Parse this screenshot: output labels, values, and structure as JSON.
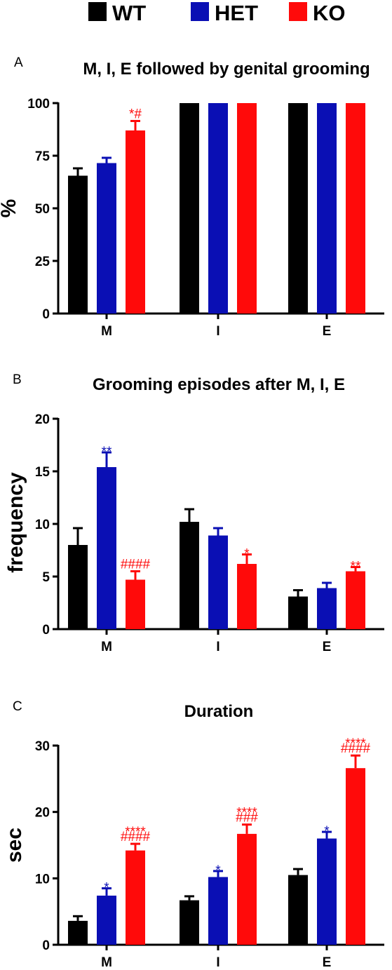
{
  "legend": [
    {
      "label": "WT",
      "color": "#000000"
    },
    {
      "label": "HET",
      "color": "#0a0fb4"
    },
    {
      "label": "KO",
      "color": "#ff0a0a"
    }
  ],
  "colors": {
    "WT": "#000000",
    "HET": "#0a0fb4",
    "KO": "#ff0a0a"
  },
  "chart_data": [
    {
      "panel": "A",
      "type": "bar",
      "title": "M, I, E followed by genital grooming",
      "ylabel": "%",
      "xlabel": "",
      "categories": [
        "M",
        "I",
        "E"
      ],
      "ylim": [
        0,
        100
      ],
      "yticks": [
        "0",
        "25",
        "50",
        "75",
        "100"
      ],
      "series": [
        {
          "name": "WT",
          "values": [
            65.5,
            100,
            100
          ],
          "errors": [
            3.5,
            0,
            0
          ],
          "annotations": [
            "",
            "",
            ""
          ]
        },
        {
          "name": "HET",
          "values": [
            71.5,
            100,
            100
          ],
          "errors": [
            2.5,
            0,
            0
          ],
          "annotations": [
            "",
            "",
            ""
          ]
        },
        {
          "name": "KO",
          "values": [
            87,
            100,
            100
          ],
          "errors": [
            4.5,
            0,
            0
          ],
          "annotations": [
            "*#",
            "",
            ""
          ]
        }
      ]
    },
    {
      "panel": "B",
      "type": "bar",
      "title": "Grooming episodes after M, I, E",
      "ylabel": "frequency",
      "xlabel": "",
      "categories": [
        "M",
        "I",
        "E"
      ],
      "ylim": [
        0,
        20
      ],
      "yticks": [
        "0",
        "5",
        "10",
        "15",
        "20"
      ],
      "series": [
        {
          "name": "WT",
          "values": [
            8,
            10.2,
            3.1
          ],
          "errors": [
            1.6,
            1.2,
            0.6
          ],
          "annotations": [
            "",
            "",
            ""
          ]
        },
        {
          "name": "HET",
          "values": [
            15.4,
            8.9,
            3.9
          ],
          "errors": [
            1.4,
            0.7,
            0.5
          ],
          "annotations": [
            "**",
            "",
            ""
          ]
        },
        {
          "name": "KO",
          "values": [
            4.7,
            6.2,
            5.5
          ],
          "errors": [
            0.8,
            0.9,
            0.4
          ],
          "annotations": [
            "####",
            "*",
            "**"
          ]
        }
      ]
    },
    {
      "panel": "C",
      "type": "bar",
      "title": "Duration",
      "ylabel": "sec",
      "xlabel": "",
      "categories": [
        "M",
        "I",
        "E"
      ],
      "ylim": [
        0,
        30
      ],
      "yticks": [
        "0",
        "10",
        "20",
        "30"
      ],
      "series": [
        {
          "name": "WT",
          "values": [
            3.6,
            6.7,
            10.5
          ],
          "errors": [
            0.7,
            0.6,
            0.9
          ],
          "annotations": [
            "",
            "",
            ""
          ]
        },
        {
          "name": "HET",
          "values": [
            7.4,
            10.2,
            16
          ],
          "errors": [
            1.1,
            0.9,
            1.0
          ],
          "annotations": [
            "*",
            "*",
            "*"
          ]
        },
        {
          "name": "KO",
          "values": [
            14.2,
            16.7,
            26.6
          ],
          "errors": [
            1.0,
            1.4,
            1.9
          ],
          "annotations": [
            "****\n####",
            "****\n###",
            "****\n####"
          ]
        }
      ]
    }
  ]
}
